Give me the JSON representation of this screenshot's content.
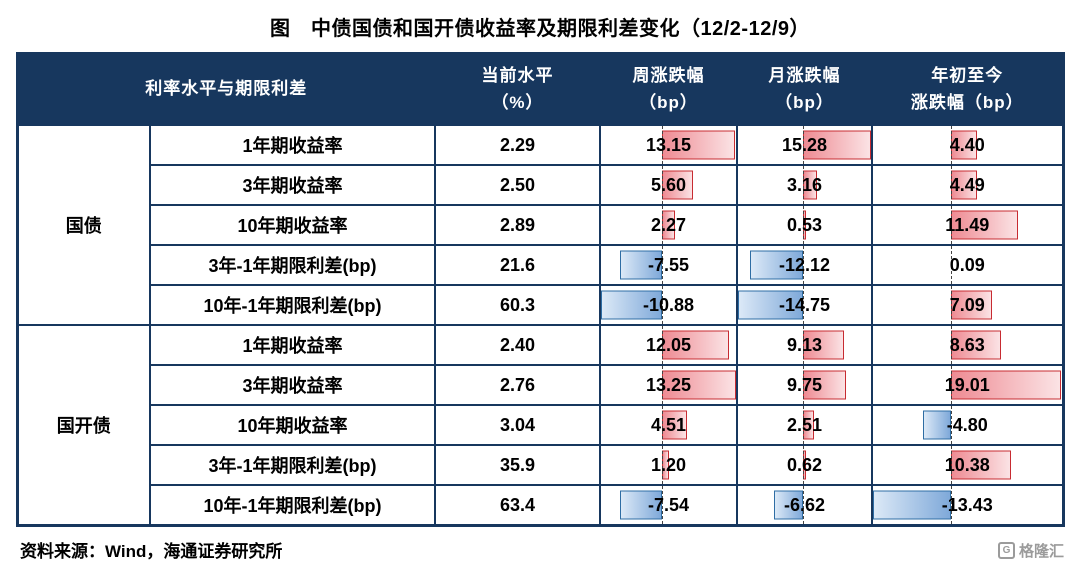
{
  "title": "图　中债国债和国开债收益率及期限利差变化（12/2-12/9）",
  "source": "资料来源：Wind，海通证券研究所",
  "logo": {
    "text": "格隆汇",
    "icon": "G"
  },
  "colors": {
    "header_bg": "#17375E",
    "table_border": "#17375E",
    "positive_bar_fill": "#F2A0A6",
    "positive_bar_border": "#C72B31",
    "negative_bar_fill": "#9DC3E6",
    "negative_bar_border": "#2E6DA4"
  },
  "chart_data": {
    "type": "table",
    "title": "中债国债和国开债收益率及期限利差变化（12/2-12/9）",
    "header": {
      "rate_label": "利率水平与期限利差",
      "current_l1": "当前水平",
      "current_l2": "（%）",
      "week_l1": "周涨跌幅",
      "week_l2": "（bp）",
      "month_l1": "月涨跌幅",
      "month_l2": "（bp）",
      "ytd_l1": "年初至今",
      "ytd_l2": "涨跌幅（bp）"
    },
    "rows": [
      {
        "group": "国债",
        "label": "1年期收益率",
        "current": "2.29",
        "week": "13.15",
        "month": "15.28",
        "ytd": "4.40"
      },
      {
        "group": "国债",
        "label": "3年期收益率",
        "current": "2.50",
        "week": "5.60",
        "month": "3.16",
        "ytd": "4.49"
      },
      {
        "group": "国债",
        "label": "10年期收益率",
        "current": "2.89",
        "week": "2.27",
        "month": "0.53",
        "ytd": "11.49"
      },
      {
        "group": "国债",
        "label": "3年-1年期限利差(bp)",
        "current": "21.6",
        "week": "-7.55",
        "month": "-12.12",
        "ytd": "0.09"
      },
      {
        "group": "国债",
        "label": "10年-1年期限利差(bp)",
        "current": "60.3",
        "week": "-10.88",
        "month": "-14.75",
        "ytd": "7.09"
      },
      {
        "group": "国开债",
        "label": "1年期收益率",
        "current": "2.40",
        "week": "12.05",
        "month": "9.13",
        "ytd": "8.63"
      },
      {
        "group": "国开债",
        "label": "3年期收益率",
        "current": "2.76",
        "week": "13.25",
        "month": "9.75",
        "ytd": "19.01"
      },
      {
        "group": "国开债",
        "label": "10年期收益率",
        "current": "3.04",
        "week": "4.51",
        "month": "2.51",
        "ytd": "-4.80"
      },
      {
        "group": "国开债",
        "label": "3年-1年期限利差(bp)",
        "current": "35.9",
        "week": "1.20",
        "month": "0.62",
        "ytd": "10.38"
      },
      {
        "group": "国开债",
        "label": "10年-1年期限利差(bp)",
        "current": "63.4",
        "week": "-7.54",
        "month": "-6.62",
        "ytd": "-13.43"
      }
    ]
  }
}
